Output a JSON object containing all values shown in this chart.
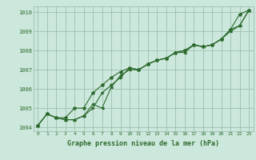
{
  "title": "Graphe pression niveau de la mer (hPa)",
  "bg_color": "#cce8dc",
  "grid_color": "#9dbfb0",
  "line_color": "#2d6a2d",
  "marker_color": "#2d6a2d",
  "ylim": [
    1003.8,
    1010.3
  ],
  "xlim": [
    -0.5,
    23.5
  ],
  "yticks": [
    1004,
    1005,
    1006,
    1007,
    1008,
    1009,
    1010
  ],
  "xticks": [
    0,
    1,
    2,
    3,
    4,
    5,
    6,
    7,
    8,
    9,
    10,
    11,
    12,
    13,
    14,
    15,
    16,
    17,
    18,
    19,
    20,
    21,
    22,
    23
  ],
  "series1": [
    1004.1,
    1004.7,
    1004.5,
    1004.5,
    1005.0,
    1005.0,
    1005.8,
    1006.2,
    1006.6,
    1006.9,
    1007.1,
    1007.0,
    1007.3,
    1007.5,
    1007.6,
    1007.9,
    1008.0,
    1008.3,
    1008.2,
    1008.3,
    1008.6,
    1009.1,
    1009.9,
    1010.1
  ],
  "series2": [
    1004.1,
    1004.7,
    1004.5,
    1004.4,
    1004.4,
    1004.6,
    1005.0,
    1005.8,
    1006.2,
    1006.6,
    1007.1,
    1007.0,
    1007.3,
    1007.5,
    1007.6,
    1007.9,
    1008.0,
    1008.3,
    1008.2,
    1008.3,
    1008.6,
    1009.1,
    1009.3,
    1010.1
  ],
  "series3": [
    1004.1,
    1004.7,
    1004.5,
    1004.4,
    1004.4,
    1004.6,
    1005.2,
    1005.0,
    1006.1,
    1006.7,
    1007.0,
    1007.0,
    1007.3,
    1007.5,
    1007.6,
    1007.9,
    1007.9,
    1008.3,
    1008.2,
    1008.3,
    1008.6,
    1009.0,
    1009.3,
    1010.1
  ],
  "ylabel_fontsize": 5,
  "xlabel_fontsize": 6,
  "tick_fontsize": 4.5
}
